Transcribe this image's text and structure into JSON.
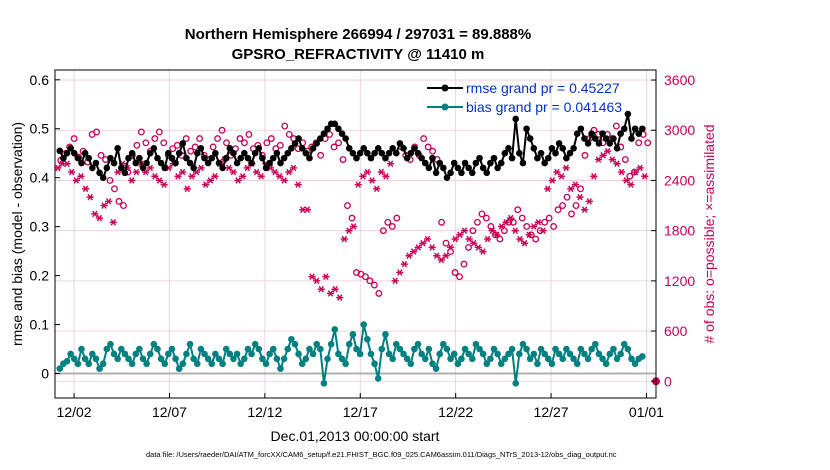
{
  "title": {
    "line1": "Northern Hemisphere 266994 / 297031 = 89.888%",
    "line2": "GPSRO_REFRACTIVITY @ 11410 m"
  },
  "footnote": "data file: /Users/raeder/DAI/ATM_forcXX/CAM6_setup/f.e21.FHIST_BGC.f09_025.CAM6assim.011/Diags_NTrS_2013-12/obs_diag_output.nc",
  "colors": {
    "rmse": "#000000",
    "bias": "#008080",
    "obs": "#cc0055",
    "legend_text": "#0033cc",
    "zero_line": "#b0b0b0"
  },
  "chart_data": {
    "type": "line",
    "title": "Northern Hemisphere 266994 / 297031 = 89.888%",
    "subtitle": "GPSRO_REFRACTIVITY @ 11410 m",
    "xlabel": "Dec.01,2013 00:00:00 start",
    "ylabel": "rmse and bias (model - observation)",
    "ylabel_right": "# of obs: o=possible; ×=assimilated",
    "x_range": [
      0,
      31.5
    ],
    "ylim": [
      -0.05,
      0.62
    ],
    "ylim_right": [
      -200,
      3720
    ],
    "grid": true,
    "x_ticks": [
      {
        "value": 1,
        "label": "12/02"
      },
      {
        "value": 6,
        "label": "12/07"
      },
      {
        "value": 11,
        "label": "12/12"
      },
      {
        "value": 16,
        "label": "12/17"
      },
      {
        "value": 21,
        "label": "12/22"
      },
      {
        "value": 26,
        "label": "12/27"
      },
      {
        "value": 31,
        "label": "01/01"
      }
    ],
    "y_ticks": [
      0,
      0.1,
      0.2,
      0.3,
      0.4,
      0.5,
      0.6
    ],
    "y_tick_labels": [
      "0",
      "0.1",
      "0.2",
      "0.3",
      "0.4",
      "0.5",
      "0.6"
    ],
    "y_right_ticks": [
      0,
      600,
      1200,
      1800,
      2400,
      3000,
      3600
    ],
    "y_right_tick_labels": [
      "0",
      "600",
      "1200",
      "1800",
      "2400",
      "3000",
      "3600"
    ],
    "legend": [
      {
        "label": "rmse grand pr = 0.45227",
        "series": "rmse"
      },
      {
        "label": "bias grand pr = 0.041463",
        "series": "bias"
      }
    ],
    "legend_position": "top-right",
    "series": [
      {
        "name": "rmse",
        "marker": "filled-circle",
        "values": [
          0.455,
          0.44,
          0.45,
          0.46,
          0.45,
          0.44,
          0.43,
          0.45,
          0.44,
          0.42,
          0.43,
          0.41,
          0.4,
          0.42,
          0.44,
          0.43,
          0.46,
          0.42,
          0.41,
          0.44,
          0.45,
          0.43,
          0.44,
          0.42,
          0.43,
          0.45,
          0.46,
          0.44,
          0.43,
          0.42,
          0.45,
          0.44,
          0.43,
          0.45,
          0.47,
          0.44,
          0.43,
          0.42,
          0.45,
          0.46,
          0.44,
          0.43,
          0.44,
          0.45,
          0.43,
          0.42,
          0.44,
          0.46,
          0.45,
          0.43,
          0.44,
          0.45,
          0.44,
          0.43,
          0.45,
          0.46,
          0.44,
          0.42,
          0.43,
          0.44,
          0.45,
          0.43,
          0.44,
          0.45,
          0.46,
          0.47,
          0.48,
          0.46,
          0.45,
          0.44,
          0.46,
          0.47,
          0.48,
          0.49,
          0.5,
          0.51,
          0.51,
          0.5,
          0.49,
          0.48,
          0.46,
          0.45,
          0.44,
          0.45,
          0.46,
          0.45,
          0.44,
          0.45,
          0.46,
          0.45,
          0.44,
          0.45,
          0.46,
          0.45,
          0.47,
          0.46,
          0.44,
          0.45,
          0.46,
          0.45,
          0.44,
          0.43,
          0.42,
          0.44,
          0.41,
          0.43,
          0.42,
          0.4,
          0.41,
          0.43,
          0.42,
          0.41,
          0.43,
          0.42,
          0.41,
          0.43,
          0.44,
          0.42,
          0.41,
          0.43,
          0.44,
          0.42,
          0.43,
          0.45,
          0.46,
          0.44,
          0.52,
          0.45,
          0.43,
          0.5,
          0.48,
          0.46,
          0.44,
          0.45,
          0.43,
          0.44,
          0.46,
          0.45,
          0.47,
          0.46,
          0.44,
          0.45,
          0.46,
          0.49,
          0.5,
          0.48,
          0.47,
          0.49,
          0.48,
          0.47,
          0.49,
          0.48,
          0.47,
          0.48,
          0.46,
          0.49,
          0.5,
          0.53,
          0.48,
          0.5,
          0.49,
          0.5
        ]
      },
      {
        "name": "bias",
        "marker": "filled-circle",
        "values": [
          0.01,
          0.02,
          0.025,
          0.04,
          0.03,
          0.02,
          0.05,
          0.03,
          0.02,
          0.04,
          0.03,
          0.01,
          0.02,
          0.05,
          0.06,
          0.04,
          0.03,
          0.05,
          0.04,
          0.03,
          0.02,
          0.04,
          0.05,
          0.03,
          0.02,
          0.04,
          0.06,
          0.05,
          0.03,
          0.02,
          0.04,
          0.05,
          0.03,
          0.01,
          0.02,
          0.04,
          0.06,
          0.03,
          0.02,
          0.05,
          0.04,
          0.03,
          0.02,
          0.04,
          0.03,
          0.02,
          0.05,
          0.04,
          0.03,
          0.04,
          0.02,
          0.03,
          0.05,
          0.04,
          0.06,
          0.05,
          0.03,
          0.02,
          0.04,
          0.05,
          0.03,
          0.01,
          0.03,
          0.05,
          0.07,
          0.06,
          0.04,
          0.02,
          0.03,
          0.05,
          0.04,
          0.06,
          0.05,
          -0.02,
          0.03,
          0.06,
          0.09,
          0.04,
          0.03,
          0.02,
          0.06,
          0.08,
          0.05,
          0.04,
          0.1,
          0.07,
          0.04,
          0.02,
          -0.01,
          0.05,
          0.08,
          0.04,
          0.03,
          0.06,
          0.05,
          0.04,
          0.03,
          0.02,
          0.05,
          0.06,
          0.04,
          0.03,
          0.05,
          0.02,
          0.01,
          0.04,
          0.06,
          0.05,
          0.03,
          0.04,
          0.02,
          0.03,
          0.05,
          0.04,
          0.03,
          0.06,
          0.05,
          0.04,
          0.02,
          0.03,
          0.05,
          0.04,
          0.02,
          0.03,
          0.04,
          0.05,
          -0.02,
          0.04,
          0.06,
          0.05,
          0.03,
          0.04,
          0.02,
          0.05,
          0.04,
          0.03,
          0.02,
          0.05,
          0.04,
          0.03,
          0.05,
          0.04,
          0.03,
          0.02,
          0.05,
          0.04,
          0.03,
          0.05,
          0.06,
          0.04,
          0.03,
          0.02,
          0.04,
          0.05,
          0.03,
          0.04,
          0.06,
          0.05,
          0.03,
          0.02,
          0.03,
          0.035
        ]
      },
      {
        "name": "obs_possible",
        "marker": "open-circle",
        "axis": "right",
        "values": [
          2640,
          2720,
          2800,
          2900,
          2680,
          2750,
          2620,
          2950,
          2980,
          2700,
          2650,
          2400,
          2300,
          2150,
          2100,
          2500,
          2700,
          2820,
          2980,
          2850,
          2750,
          2900,
          2980,
          2850,
          2700,
          2780,
          2820,
          2700,
          2900,
          2750,
          2800,
          2900,
          2700,
          2650,
          2800,
          2900,
          3000,
          2850,
          2700,
          2780,
          2900,
          2850,
          2950,
          2780,
          2820,
          2700,
          2850,
          2900,
          2780,
          2820,
          3050,
          2950,
          2900,
          2780,
          2850,
          2750,
          2800,
          2850,
          2700,
          2900,
          2950,
          2800,
          2850,
          2650,
          2100,
          1950,
          1300,
          1280,
          1250,
          1200,
          1150,
          1050,
          1800,
          1900,
          1850,
          1950,
          2800,
          2700,
          2650,
          2800,
          2700,
          2900,
          2800,
          2750,
          2650,
          1900,
          1650,
          1550,
          1300,
          1250,
          1400,
          1600,
          1800,
          1900,
          2000,
          1950,
          1850,
          1750,
          1700,
          1800,
          1900,
          1900,
          2050,
          1950,
          1850,
          1750,
          1700,
          1800,
          1900,
          1950,
          1850,
          2050,
          2100,
          2200,
          2000,
          2100,
          2300,
          2700,
          2900,
          3000,
          2950,
          2850,
          2950,
          2900,
          3050,
          2800,
          2650,
          2450,
          2500,
          2850,
          2950,
          2850
        ]
      },
      {
        "name": "obs_assimilated",
        "marker": "asterisk",
        "axis": "right",
        "values": [
          2550,
          2600,
          2600,
          2500,
          2400,
          2450,
          2300,
          2200,
          2000,
          1950,
          2100,
          2150,
          1900,
          2500,
          2600,
          2550,
          2400,
          2500,
          2600,
          2500,
          2550,
          2450,
          2400,
          2350,
          2550,
          2600,
          2450,
          2500,
          2300,
          2450,
          2500,
          2550,
          2350,
          2400,
          2450,
          2600,
          2650,
          2550,
          2500,
          2400,
          2450,
          2550,
          2600,
          2500,
          2450,
          2600,
          2550,
          2500,
          2450,
          2400,
          2500,
          2550,
          2350,
          2050,
          2050,
          1250,
          1200,
          1100,
          1250,
          1050,
          1100,
          1000,
          1700,
          1800,
          1850,
          2350,
          2450,
          2500,
          2400,
          2300,
          2500,
          2450,
          2600,
          1200,
          1300,
          1400,
          1500,
          1550,
          1600,
          1650,
          1700,
          1600,
          1500,
          1450,
          1500,
          1600,
          1700,
          1750,
          1800,
          1700,
          1650,
          1600,
          1550,
          1700,
          1800,
          1750,
          1850,
          1900,
          1950,
          1800,
          1700,
          1650,
          1750,
          1850,
          1900,
          1800,
          2300,
          2400,
          2500,
          2450,
          2550,
          2300,
          2350,
          2200,
          2050,
          2150,
          2450,
          2650,
          2700,
          2750,
          2650,
          2600,
          2500,
          2400,
          2350,
          2500,
          2550,
          2450
        ]
      }
    ]
  }
}
